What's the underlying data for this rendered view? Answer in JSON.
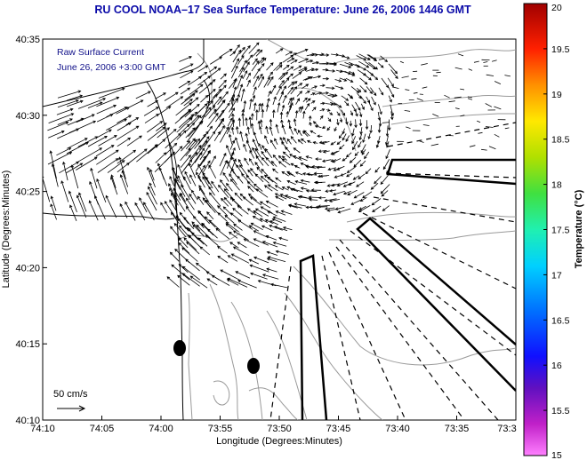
{
  "title": "RU COOL   NOAA–17  Sea Surface Temperature:  June 26, 2006 1446 GMT",
  "legend": {
    "line1": "Raw Surface Current",
    "line2": "June 26, 2006 +3:00 GMT"
  },
  "scale_label": "50 cm/s",
  "chart_data": {
    "type": "map",
    "xlabel": "Longitude (Degrees:Minutes)",
    "ylabel": "Latitude (Degrees:Minutes)",
    "x_ticks": [
      "74:10",
      "74:05",
      "74:00",
      "73:55",
      "73:50",
      "73:45",
      "73:40",
      "73:35",
      "73:3"
    ],
    "y_ticks": [
      "40:35",
      "40:30",
      "40:25",
      "40:20",
      "40:15",
      "40:10"
    ],
    "colorbar": {
      "label": "Temperature (°C)",
      "range": [
        15,
        20
      ],
      "ticks": [
        "20",
        "19.5",
        "19",
        "18.5",
        "18",
        "17.5",
        "17",
        "16.5",
        "16",
        "15.5",
        "15"
      ]
    }
  },
  "colors": {
    "title": "#0a0aa8",
    "legend": "#12128a",
    "contour": "#9a9a9a",
    "arrows": "#000000"
  }
}
